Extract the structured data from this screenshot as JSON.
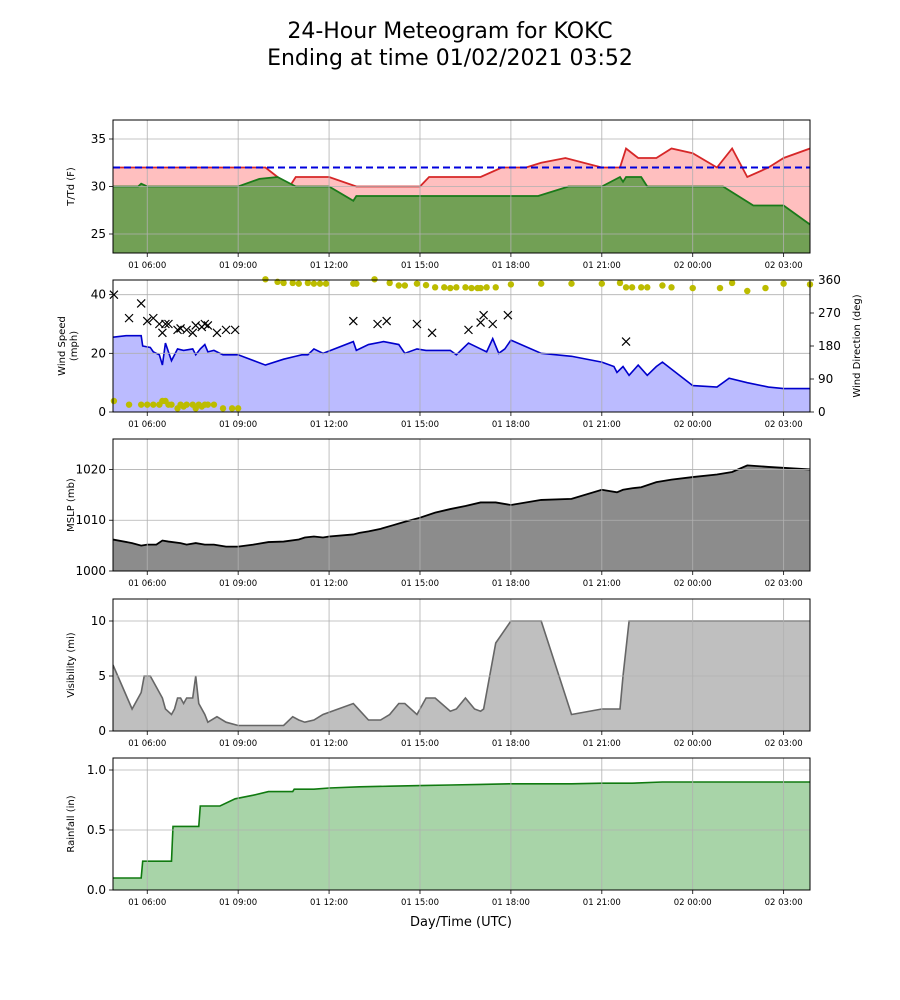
{
  "title_line1": "24-Hour Meteogram for KOKC",
  "title_line2": "Ending at time 01/02/2021 03:52",
  "xlabel": "Day/Time (UTC)",
  "x_ticks": [
    {
      "t": 6,
      "label": "01 06:00"
    },
    {
      "t": 9,
      "label": "01 09:00"
    },
    {
      "t": 12,
      "label": "01 12:00"
    },
    {
      "t": 15,
      "label": "01 15:00"
    },
    {
      "t": 18,
      "label": "01 18:00"
    },
    {
      "t": 21,
      "label": "01 21:00"
    },
    {
      "t": 24,
      "label": "02 00:00"
    },
    {
      "t": 27,
      "label": "02 03:00"
    }
  ],
  "x_range_hours": [
    4.87,
    27.87
  ],
  "colors": {
    "temp_line": "#d62728",
    "temp_fill": "#ffbfbf",
    "dew_line": "#1a7a1a",
    "dew_fill": "#72a055",
    "freeze_line": "#0000dd",
    "wind_line": "#0000cc",
    "wind_fill": "#bbbbff",
    "wdir_marker": "#bcbc00",
    "gust_marker": "#000000",
    "mslp_line": "#000000",
    "mslp_fill": "#8c8c8c",
    "vis_line": "#666666",
    "vis_fill": "#bfbfbf",
    "rain_line": "#107a10",
    "rain_fill": "#a8d4a8"
  },
  "chart_data": [
    {
      "type": "area",
      "ylabel": "T/Td (F)",
      "ylim": [
        23,
        37
      ],
      "y_ticks": [
        25,
        30,
        35
      ],
      "grid": true,
      "reference_line": 32,
      "series": [
        {
          "x": [
            4.87,
            6.0,
            9.0,
            9.9,
            10.3,
            10.7,
            10.9,
            12.0,
            12.9,
            15.0,
            15.3,
            17.0,
            17.7,
            18.0,
            18.5,
            19.0,
            19.8,
            21.0,
            21.6,
            21.8,
            22.2,
            22.8,
            23.3,
            24.0,
            24.8,
            25.3,
            25.8,
            26.5,
            27.0,
            27.87
          ],
          "values": [
            32,
            32,
            32,
            32,
            31,
            30,
            31,
            31,
            30,
            30,
            31,
            31,
            32,
            32,
            32,
            32.5,
            33,
            32,
            32,
            34,
            33,
            33,
            34,
            33.5,
            32,
            34,
            31,
            32,
            33,
            34
          ]
        },
        {
          "x": [
            4.87,
            5.7,
            5.8,
            6.0,
            9.0,
            9.7,
            10.3,
            10.9,
            12.0,
            12.8,
            12.9,
            15.0,
            17.0,
            18.0,
            18.9,
            19.9,
            21.0,
            21.6,
            21.7,
            21.8,
            22.3,
            22.5,
            24.0,
            25.0,
            25.5,
            26.0,
            27.0,
            27.87
          ],
          "values": [
            30,
            30,
            30.3,
            30,
            30,
            30.8,
            31,
            30,
            30,
            28.5,
            29,
            29,
            29,
            29,
            29,
            30,
            30,
            31,
            30.5,
            31,
            31,
            30,
            30,
            30,
            29,
            28,
            28,
            26
          ]
        }
      ]
    },
    {
      "type": "area",
      "ylabel": "Wind Speed",
      "ylabel_line2": "(mph)",
      "ylabel_right": "Wind Direction (deg)",
      "ylim": [
        0,
        45
      ],
      "y_ticks": [
        0,
        20,
        40
      ],
      "ylim_right": [
        0,
        360
      ],
      "y_ticks_right": [
        0,
        90,
        180,
        270,
        360
      ],
      "grid": true,
      "speed": {
        "x": [
          4.87,
          5.3,
          5.8,
          5.85,
          6.1,
          6.2,
          6.4,
          6.5,
          6.6,
          6.8,
          7.0,
          7.2,
          7.5,
          7.6,
          7.75,
          7.9,
          8.0,
          8.2,
          8.5,
          9.0,
          9.9,
          10.5,
          10.9,
          11.1,
          11.3,
          11.5,
          11.8,
          12.8,
          12.9,
          13.3,
          13.8,
          14.3,
          14.5,
          14.9,
          15.2,
          15.5,
          16.0,
          16.2,
          16.6,
          17.0,
          17.2,
          17.4,
          17.6,
          17.8,
          18.0,
          19.0,
          20.0,
          21.0,
          21.4,
          21.5,
          21.7,
          21.9,
          22.2,
          22.5,
          22.8,
          23.0,
          24.0,
          24.8,
          25.2,
          25.8,
          26.5,
          27.0,
          27.87
        ],
        "values": [
          25.5,
          26,
          26,
          22.5,
          22,
          20.5,
          19.5,
          16,
          23.5,
          17.5,
          21.5,
          21,
          21.5,
          19.5,
          21.5,
          23,
          20.5,
          21,
          19.5,
          19.5,
          16,
          18,
          19,
          19.5,
          19.5,
          21.5,
          20,
          24,
          21,
          23,
          24,
          23,
          20,
          21.5,
          21,
          21,
          21,
          19.5,
          23.5,
          21.5,
          20.5,
          25,
          20,
          21.5,
          24.5,
          20,
          19,
          17,
          15.5,
          13.5,
          15.5,
          12.5,
          16,
          12.5,
          15.5,
          17,
          9,
          8.5,
          11.5,
          10,
          8.5,
          8,
          8
        ]
      },
      "direction": {
        "x": [
          4.9,
          5.4,
          5.8,
          6.0,
          6.2,
          6.4,
          6.5,
          6.6,
          6.7,
          6.8,
          7.0,
          7.1,
          7.2,
          7.3,
          7.5,
          7.6,
          7.7,
          7.8,
          7.9,
          8.0,
          8.2,
          8.5,
          8.8,
          9.0,
          9.9,
          10.3,
          10.5,
          10.8,
          11.0,
          11.3,
          11.5,
          11.7,
          11.9,
          12.8,
          12.9,
          13.5,
          14.0,
          14.3,
          14.5,
          14.9,
          15.2,
          15.5,
          15.8,
          16.0,
          16.2,
          16.5,
          16.7,
          16.9,
          17.0,
          17.2,
          17.5,
          18.0,
          19.0,
          20.0,
          21.0,
          21.6,
          21.8,
          22.0,
          22.3,
          22.5,
          23.0,
          23.3,
          24.0,
          24.9,
          25.3,
          25.8,
          26.4,
          27.0,
          27.87
        ],
        "values": [
          30,
          20,
          20,
          20,
          20,
          20,
          30,
          30,
          20,
          20,
          10,
          20,
          15,
          20,
          20,
          10,
          20,
          15,
          20,
          20,
          20,
          10,
          10,
          10,
          362,
          355,
          352,
          352,
          350,
          352,
          350,
          350,
          350,
          350,
          350,
          362,
          352,
          345,
          345,
          350,
          346,
          340,
          340,
          338,
          340,
          340,
          338,
          338,
          338,
          340,
          340,
          348,
          350,
          350,
          350,
          352,
          340,
          340,
          340,
          340,
          345,
          340,
          338,
          338,
          352,
          330,
          338,
          350,
          348
        ]
      },
      "gust": {
        "x": [
          4.9,
          5.4,
          5.8,
          6.0,
          6.2,
          6.4,
          6.5,
          6.6,
          6.7,
          7.0,
          7.1,
          7.3,
          7.5,
          7.6,
          7.8,
          7.9,
          8.0,
          8.3,
          8.6,
          8.9,
          12.8,
          13.6,
          13.9,
          14.9,
          15.4,
          16.6,
          17.0,
          17.1,
          17.4,
          17.9,
          21.8
        ],
        "values": [
          40,
          32,
          37,
          31,
          32,
          30,
          27,
          30,
          30,
          28,
          28.5,
          28,
          27,
          29.5,
          29,
          30,
          29.5,
          27,
          28,
          28,
          31,
          30,
          31,
          30,
          27,
          28,
          30.5,
          33,
          30,
          33,
          24
        ]
      }
    },
    {
      "type": "area",
      "ylabel": "MSLP (mb)",
      "ylim": [
        1000,
        1026
      ],
      "y_ticks": [
        1000,
        1010,
        1020
      ],
      "grid": true,
      "x": [
        4.87,
        5.5,
        5.8,
        6.0,
        6.3,
        6.5,
        6.7,
        7.1,
        7.3,
        7.6,
        7.9,
        8.2,
        8.6,
        9.0,
        9.5,
        10.0,
        10.5,
        11.0,
        11.2,
        11.5,
        11.8,
        12.0,
        12.8,
        13.0,
        13.3,
        13.7,
        14.1,
        14.5,
        15.0,
        15.5,
        16.0,
        16.5,
        17.0,
        17.5,
        18.0,
        19.0,
        20.0,
        21.0,
        21.5,
        21.7,
        22.0,
        22.3,
        22.8,
        23.3,
        24.0,
        24.8,
        25.3,
        25.8,
        26.5,
        27.87
      ],
      "values": [
        1006.2,
        1005.5,
        1005.0,
        1005.2,
        1005.2,
        1006.0,
        1005.8,
        1005.5,
        1005.2,
        1005.5,
        1005.2,
        1005.2,
        1004.8,
        1004.8,
        1005.2,
        1005.7,
        1005.8,
        1006.2,
        1006.6,
        1006.8,
        1006.6,
        1006.8,
        1007.2,
        1007.5,
        1007.8,
        1008.3,
        1009.0,
        1009.7,
        1010.5,
        1011.5,
        1012.2,
        1012.8,
        1013.5,
        1013.5,
        1013.0,
        1014.0,
        1014.2,
        1016.0,
        1015.5,
        1016.0,
        1016.3,
        1016.5,
        1017.5,
        1018.0,
        1018.5,
        1019.0,
        1019.5,
        1020.8,
        1020.5,
        1020.0
      ]
    },
    {
      "type": "area",
      "ylabel": "Visibility (mi)",
      "ylim": [
        0,
        12
      ],
      "y_ticks": [
        0,
        5,
        10
      ],
      "grid": true,
      "x": [
        4.87,
        5.5,
        5.8,
        5.9,
        6.1,
        6.3,
        6.5,
        6.6,
        6.8,
        6.9,
        7.0,
        7.1,
        7.2,
        7.3,
        7.5,
        7.6,
        7.7,
        7.9,
        8.0,
        8.3,
        8.6,
        9.0,
        9.5,
        10.0,
        10.5,
        10.8,
        11.0,
        11.2,
        11.5,
        11.8,
        12.8,
        12.9,
        13.3,
        13.7,
        14.0,
        14.3,
        14.5,
        14.9,
        15.2,
        15.5,
        16.0,
        16.2,
        16.5,
        16.8,
        17.0,
        17.1,
        17.2,
        17.5,
        18.0,
        19.0,
        20.0,
        21.0,
        21.6,
        21.7,
        21.9,
        22.2,
        27.87
      ],
      "values": [
        6,
        2,
        3.5,
        5,
        5,
        4,
        3,
        2,
        1.5,
        2,
        3,
        3,
        2.5,
        3,
        3,
        5,
        2.5,
        1.5,
        0.8,
        1.3,
        0.8,
        0.5,
        0.5,
        0.5,
        0.5,
        1.3,
        1.0,
        0.8,
        1.0,
        1.5,
        2.5,
        2.2,
        1.0,
        1.0,
        1.5,
        2.5,
        2.5,
        1.5,
        3,
        3,
        1.8,
        2,
        3,
        2,
        1.8,
        2,
        3.5,
        8,
        10,
        10,
        1.5,
        2,
        2,
        5,
        10,
        10,
        10
      ]
    },
    {
      "type": "area",
      "ylabel": "Rainfall (in)",
      "ylim": [
        0,
        1.1
      ],
      "y_ticks": [
        0.0,
        0.5,
        1.0
      ],
      "y_tick_labels": [
        "0.0",
        "0.5",
        "1.0"
      ],
      "grid": true,
      "x": [
        4.87,
        5.8,
        5.85,
        6.8,
        6.85,
        7.7,
        7.75,
        8.4,
        8.9,
        9.5,
        10.0,
        10.8,
        10.85,
        11.5,
        12.0,
        13.0,
        14.0,
        15.0,
        16.0,
        17.0,
        18.0,
        20.0,
        21.0,
        22.0,
        23.0,
        25.0,
        27.87
      ],
      "values": [
        0.1,
        0.1,
        0.24,
        0.24,
        0.53,
        0.53,
        0.7,
        0.7,
        0.76,
        0.79,
        0.82,
        0.82,
        0.84,
        0.84,
        0.85,
        0.86,
        0.865,
        0.87,
        0.875,
        0.88,
        0.885,
        0.885,
        0.89,
        0.89,
        0.9,
        0.9,
        0.9
      ]
    }
  ]
}
